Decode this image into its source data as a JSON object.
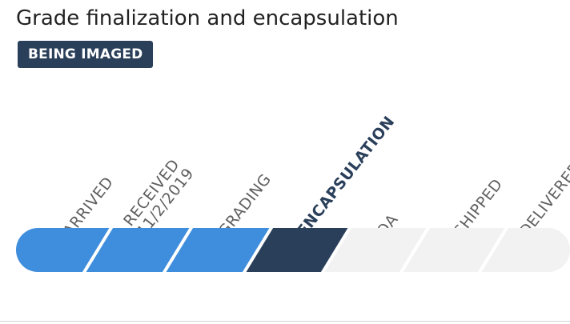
{
  "header": {
    "title": "Grade finalization and encapsulation",
    "status_badge": "BEING IMAGED"
  },
  "progress": {
    "steps": [
      {
        "label": "ARRIVED",
        "sublabel": "",
        "state": "complete"
      },
      {
        "label": "RECEIVED",
        "sublabel": "11/2/2019",
        "state": "complete"
      },
      {
        "label": "GRADING",
        "sublabel": "",
        "state": "complete"
      },
      {
        "label": "ENCAPSULATION",
        "sublabel": "",
        "state": "current"
      },
      {
        "label": "QA",
        "sublabel": "",
        "state": "pending"
      },
      {
        "label": "SHIPPED",
        "sublabel": "",
        "state": "pending"
      },
      {
        "label": "DELIVERED",
        "sublabel": "",
        "state": "pending"
      }
    ]
  },
  "colors": {
    "complete": "#3f8ddd",
    "current": "#2a3f5a",
    "pending": "#f2f2f2",
    "badge_bg": "#2a3f5a"
  }
}
